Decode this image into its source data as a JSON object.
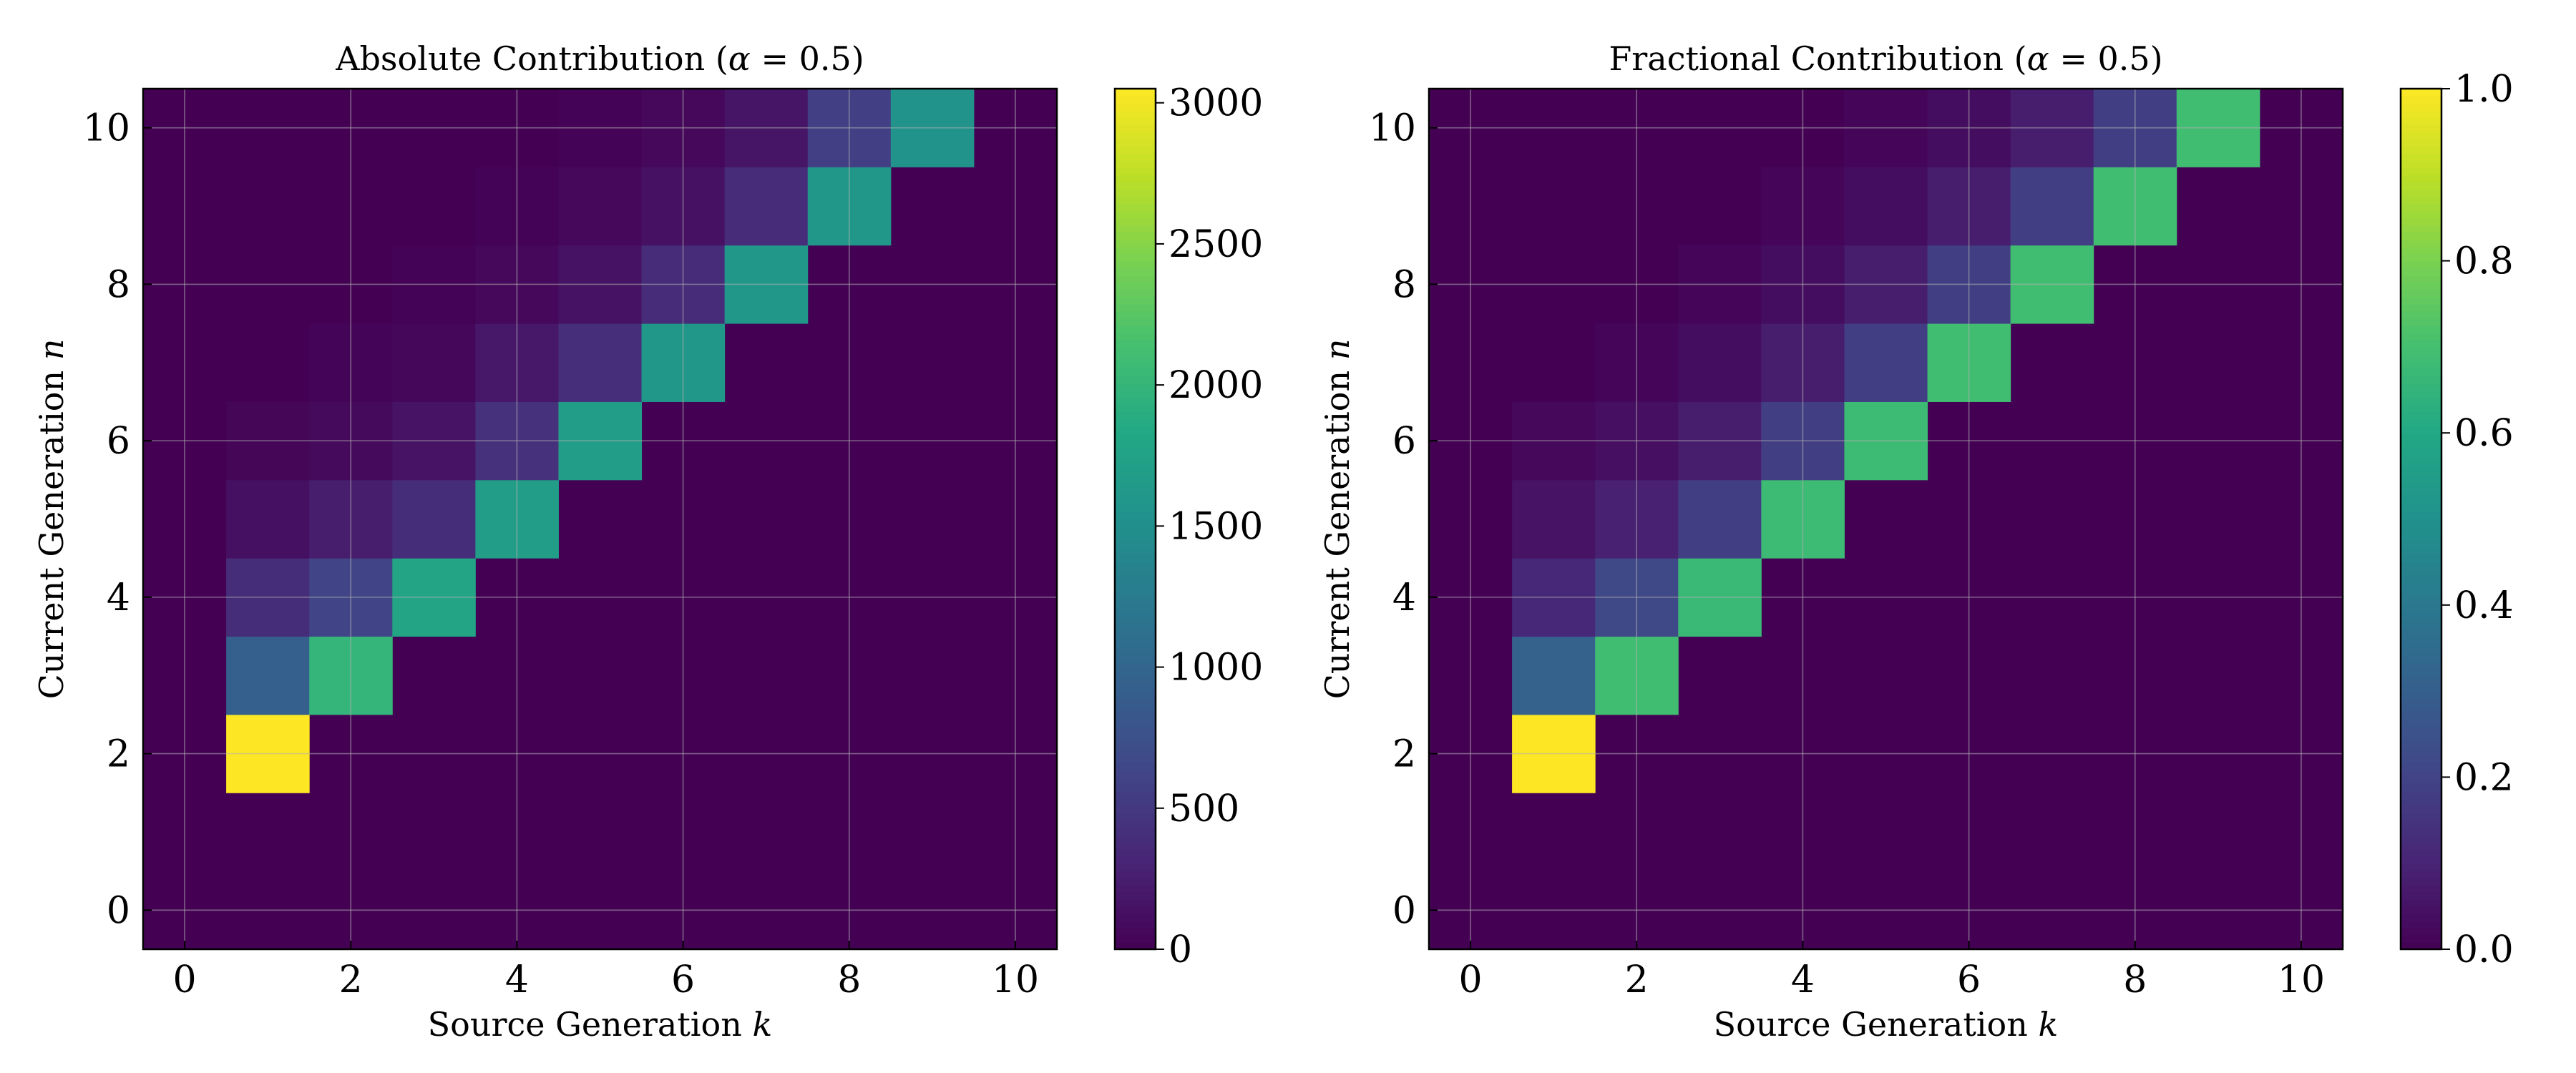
{
  "chart_data": [
    {
      "type": "heatmap",
      "title": "Absolute Contribution (α = 0.5)",
      "xlabel": "Source Generation k",
      "ylabel": "Current Generation n",
      "x": [
        0,
        1,
        2,
        3,
        4,
        5,
        6,
        7,
        8,
        9,
        10
      ],
      "y": [
        0,
        1,
        2,
        3,
        4,
        5,
        6,
        7,
        8,
        9,
        10
      ],
      "xticks": [
        0,
        2,
        4,
        6,
        8,
        10
      ],
      "yticks": [
        0,
        2,
        4,
        6,
        8,
        10
      ],
      "xlim": [
        -0.5,
        10.5
      ],
      "ylim": [
        -0.5,
        10.5
      ],
      "grid": true,
      "colormap": "viridis",
      "colorbar": {
        "vmin": 0,
        "vmax": 3050,
        "ticks": [
          0,
          500,
          1000,
          1500,
          2000,
          2500,
          3000
        ],
        "tick_labels": [
          "0",
          "500",
          "1000",
          "1500",
          "2000",
          "2500",
          "3000"
        ]
      },
      "cells": [
        {
          "k": 1,
          "n": 2,
          "v": 3050
        },
        {
          "k": 1,
          "n": 3,
          "v": 910
        },
        {
          "k": 2,
          "n": 3,
          "v": 2000
        },
        {
          "k": 1,
          "n": 4,
          "v": 390
        },
        {
          "k": 2,
          "n": 4,
          "v": 620
        },
        {
          "k": 3,
          "n": 4,
          "v": 1780
        },
        {
          "k": 1,
          "n": 5,
          "v": 130
        },
        {
          "k": 2,
          "n": 5,
          "v": 240
        },
        {
          "k": 3,
          "n": 5,
          "v": 390
        },
        {
          "k": 4,
          "n": 5,
          "v": 1690
        },
        {
          "k": 1,
          "n": 6,
          "v": 40
        },
        {
          "k": 2,
          "n": 6,
          "v": 75
        },
        {
          "k": 3,
          "n": 6,
          "v": 160
        },
        {
          "k": 4,
          "n": 6,
          "v": 430
        },
        {
          "k": 5,
          "n": 6,
          "v": 1690
        },
        {
          "k": 2,
          "n": 7,
          "v": 30
        },
        {
          "k": 3,
          "n": 7,
          "v": 55
        },
        {
          "k": 4,
          "n": 7,
          "v": 200
        },
        {
          "k": 5,
          "n": 7,
          "v": 400
        },
        {
          "k": 6,
          "n": 7,
          "v": 1600
        },
        {
          "k": 3,
          "n": 8,
          "v": 20
        },
        {
          "k": 4,
          "n": 8,
          "v": 60
        },
        {
          "k": 5,
          "n": 8,
          "v": 150
        },
        {
          "k": 6,
          "n": 8,
          "v": 380
        },
        {
          "k": 7,
          "n": 8,
          "v": 1600
        },
        {
          "k": 4,
          "n": 9,
          "v": 20
        },
        {
          "k": 5,
          "n": 9,
          "v": 60
        },
        {
          "k": 6,
          "n": 9,
          "v": 140
        },
        {
          "k": 7,
          "n": 9,
          "v": 380
        },
        {
          "k": 8,
          "n": 9,
          "v": 1600
        },
        {
          "k": 5,
          "n": 10,
          "v": 20
        },
        {
          "k": 6,
          "n": 10,
          "v": 60
        },
        {
          "k": 7,
          "n": 10,
          "v": 170
        },
        {
          "k": 8,
          "n": 10,
          "v": 560
        },
        {
          "k": 9,
          "n": 10,
          "v": 1550
        }
      ]
    },
    {
      "type": "heatmap",
      "title": "Fractional Contribution (α = 0.5)",
      "xlabel": "Source Generation k",
      "ylabel": "Current Generation n",
      "x": [
        0,
        1,
        2,
        3,
        4,
        5,
        6,
        7,
        8,
        9,
        10
      ],
      "y": [
        0,
        1,
        2,
        3,
        4,
        5,
        6,
        7,
        8,
        9,
        10
      ],
      "xticks": [
        0,
        2,
        4,
        6,
        8,
        10
      ],
      "yticks": [
        0,
        2,
        4,
        6,
        8,
        10
      ],
      "xlim": [
        -0.5,
        10.5
      ],
      "ylim": [
        -0.5,
        10.5
      ],
      "grid": true,
      "colormap": "viridis",
      "colorbar": {
        "vmin": 0,
        "vmax": 1.0,
        "ticks": [
          0,
          0.2,
          0.4,
          0.6,
          0.8,
          1.0
        ],
        "tick_labels": [
          "0.0",
          "0.2",
          "0.4",
          "0.6",
          "0.8",
          "1.0"
        ]
      },
      "cells": [
        {
          "k": 1,
          "n": 2,
          "v": 1.0
        },
        {
          "k": 1,
          "n": 3,
          "v": 0.31
        },
        {
          "k": 2,
          "n": 3,
          "v": 0.69
        },
        {
          "k": 1,
          "n": 4,
          "v": 0.11
        },
        {
          "k": 2,
          "n": 4,
          "v": 0.22
        },
        {
          "k": 3,
          "n": 4,
          "v": 0.67
        },
        {
          "k": 1,
          "n": 5,
          "v": 0.05
        },
        {
          "k": 2,
          "n": 5,
          "v": 0.09
        },
        {
          "k": 3,
          "n": 5,
          "v": 0.18
        },
        {
          "k": 4,
          "n": 5,
          "v": 0.68
        },
        {
          "k": 1,
          "n": 6,
          "v": 0.02
        },
        {
          "k": 2,
          "n": 6,
          "v": 0.04
        },
        {
          "k": 3,
          "n": 6,
          "v": 0.08
        },
        {
          "k": 4,
          "n": 6,
          "v": 0.18
        },
        {
          "k": 5,
          "n": 6,
          "v": 0.68
        },
        {
          "k": 2,
          "n": 7,
          "v": 0.015
        },
        {
          "k": 3,
          "n": 7,
          "v": 0.035
        },
        {
          "k": 4,
          "n": 7,
          "v": 0.08
        },
        {
          "k": 5,
          "n": 7,
          "v": 0.18
        },
        {
          "k": 6,
          "n": 7,
          "v": 0.69
        },
        {
          "k": 3,
          "n": 8,
          "v": 0.015
        },
        {
          "k": 4,
          "n": 8,
          "v": 0.035
        },
        {
          "k": 5,
          "n": 8,
          "v": 0.08
        },
        {
          "k": 6,
          "n": 8,
          "v": 0.18
        },
        {
          "k": 7,
          "n": 8,
          "v": 0.69
        },
        {
          "k": 4,
          "n": 9,
          "v": 0.015
        },
        {
          "k": 5,
          "n": 9,
          "v": 0.035
        },
        {
          "k": 6,
          "n": 9,
          "v": 0.08
        },
        {
          "k": 7,
          "n": 9,
          "v": 0.18
        },
        {
          "k": 8,
          "n": 9,
          "v": 0.69
        },
        {
          "k": 5,
          "n": 10,
          "v": 0.015
        },
        {
          "k": 6,
          "n": 10,
          "v": 0.035
        },
        {
          "k": 7,
          "n": 10,
          "v": 0.08
        },
        {
          "k": 8,
          "n": 10,
          "v": 0.18
        },
        {
          "k": 9,
          "n": 10,
          "v": 0.69
        }
      ]
    }
  ]
}
